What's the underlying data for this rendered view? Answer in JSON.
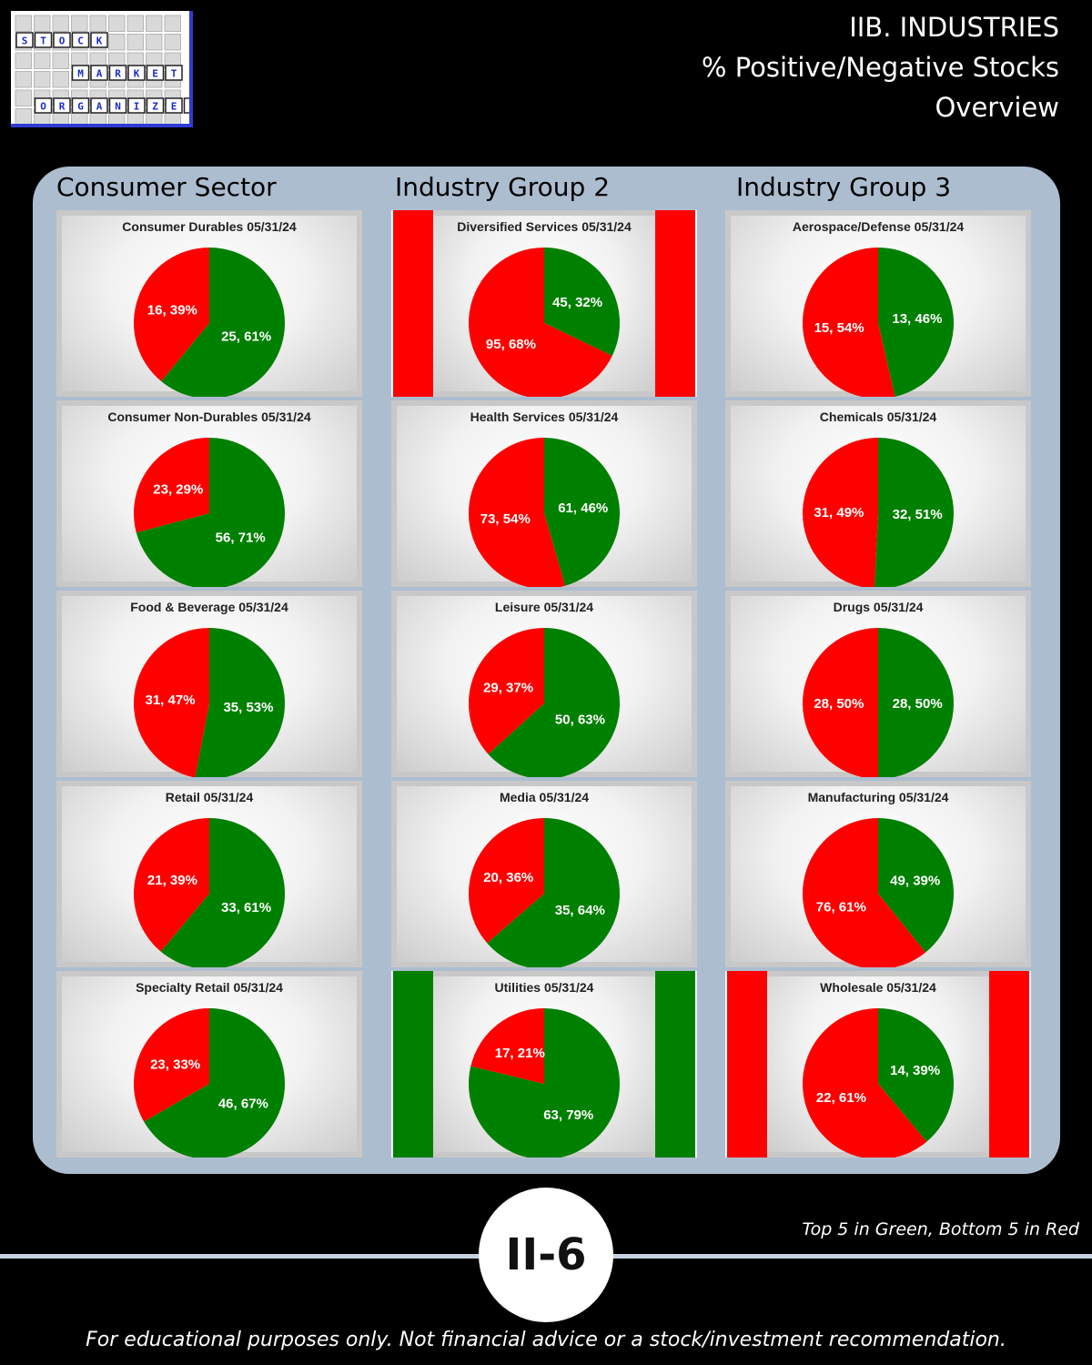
{
  "logo": {
    "word1": [
      "S",
      "T",
      "O",
      "C",
      "K"
    ],
    "word2": [
      "M",
      "A",
      "R",
      "K",
      "E",
      "T"
    ],
    "word3": [
      "O",
      "R",
      "G",
      "A",
      "N",
      "I",
      "Z",
      "E",
      "R"
    ]
  },
  "header": {
    "line1": "IIB. INDUSTRIES",
    "line2": "% Positive/Negative Stocks",
    "line3": "Overview"
  },
  "columns": [
    "Consumer Sector",
    "Industry Group 2",
    "Industry Group 3"
  ],
  "colors": {
    "positive": "#008000",
    "negative": "#ff0000",
    "panel": "#adbdd0"
  },
  "chart_data": [
    {
      "type": "pie",
      "title": "Consumer Durables 05/31/24",
      "negative": 16,
      "negative_pct": "39%",
      "positive": 25,
      "positive_pct": "61%",
      "marker": null
    },
    {
      "type": "pie",
      "title": "Diversified Services 05/31/24",
      "negative": 95,
      "negative_pct": "68%",
      "positive": 45,
      "positive_pct": "32%",
      "marker": "red"
    },
    {
      "type": "pie",
      "title": "Aerospace/Defense 05/31/24",
      "negative": 15,
      "negative_pct": "54%",
      "positive": 13,
      "positive_pct": "46%",
      "marker": null
    },
    {
      "type": "pie",
      "title": "Consumer Non-Durables 05/31/24",
      "negative": 23,
      "negative_pct": "29%",
      "positive": 56,
      "positive_pct": "71%",
      "marker": null
    },
    {
      "type": "pie",
      "title": "Health Services 05/31/24",
      "negative": 73,
      "negative_pct": "54%",
      "positive": 61,
      "positive_pct": "46%",
      "marker": null
    },
    {
      "type": "pie",
      "title": "Chemicals 05/31/24",
      "negative": 31,
      "negative_pct": "49%",
      "positive": 32,
      "positive_pct": "51%",
      "marker": null
    },
    {
      "type": "pie",
      "title": "Food & Beverage 05/31/24",
      "negative": 31,
      "negative_pct": "47%",
      "positive": 35,
      "positive_pct": "53%",
      "marker": null
    },
    {
      "type": "pie",
      "title": "Leisure 05/31/24",
      "negative": 29,
      "negative_pct": "37%",
      "positive": 50,
      "positive_pct": "63%",
      "marker": null
    },
    {
      "type": "pie",
      "title": "Drugs 05/31/24",
      "negative": 28,
      "negative_pct": "50%",
      "positive": 28,
      "positive_pct": "50%",
      "marker": null
    },
    {
      "type": "pie",
      "title": "Retail 05/31/24",
      "negative": 21,
      "negative_pct": "39%",
      "positive": 33,
      "positive_pct": "61%",
      "marker": null
    },
    {
      "type": "pie",
      "title": "Media 05/31/24",
      "negative": 20,
      "negative_pct": "36%",
      "positive": 35,
      "positive_pct": "64%",
      "marker": null
    },
    {
      "type": "pie",
      "title": "Manufacturing 05/31/24",
      "negative": 76,
      "negative_pct": "61%",
      "positive": 49,
      "positive_pct": "39%",
      "marker": null
    },
    {
      "type": "pie",
      "title": "Specialty Retail 05/31/24",
      "negative": 23,
      "negative_pct": "33%",
      "positive": 46,
      "positive_pct": "67%",
      "marker": null
    },
    {
      "type": "pie",
      "title": "Utilities 05/31/24",
      "negative": 17,
      "negative_pct": "21%",
      "positive": 63,
      "positive_pct": "79%",
      "marker": "green"
    },
    {
      "type": "pie",
      "title": "Wholesale 05/31/24",
      "negative": 22,
      "negative_pct": "61%",
      "positive": 14,
      "positive_pct": "39%",
      "marker": "red"
    }
  ],
  "page_number": "II-6",
  "legend_note": "Top 5 in Green, Bottom 5 in Red",
  "footer": "For educational purposes only. Not financial advice or a stock/investment recommendation."
}
